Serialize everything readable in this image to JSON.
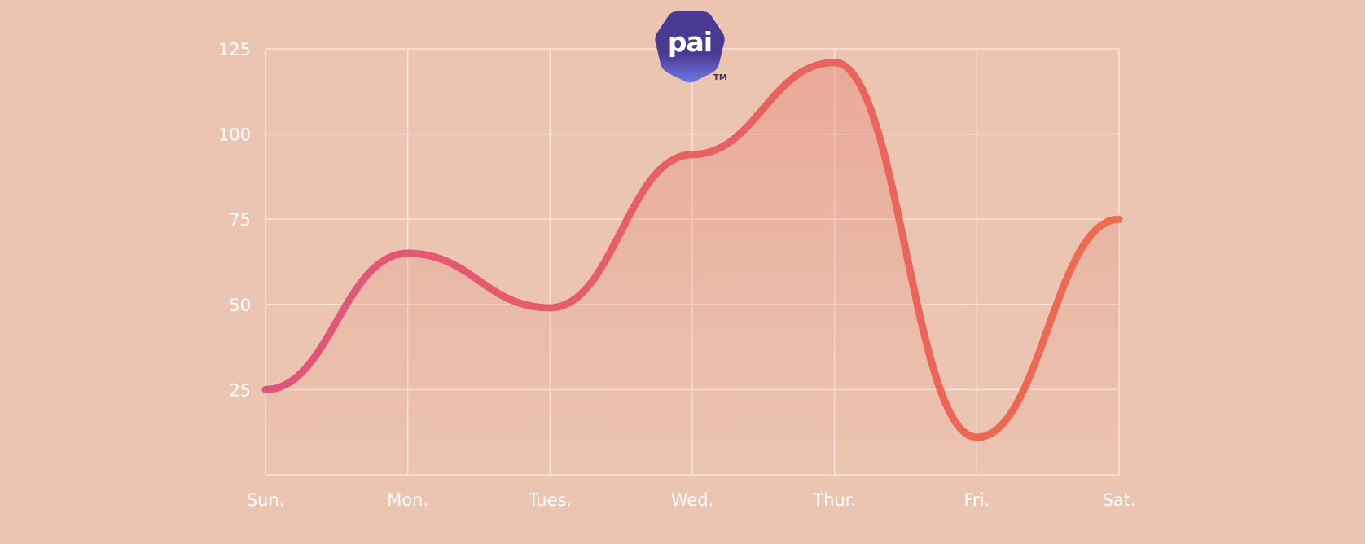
{
  "logo": {
    "text": "pai",
    "trademark": "TM"
  },
  "colors": {
    "background": "#ebc5b2",
    "grid": "#f7e3da",
    "line_start": "#e0557a",
    "line_end": "#ee6b4f",
    "logo_top": "#4b3a94",
    "logo_bottom": "#6f78e8"
  },
  "chart_data": {
    "type": "area",
    "categories": [
      "Sun.",
      "Mon.",
      "Tues.",
      "Wed.",
      "Thur.",
      "Fri.",
      "Sat."
    ],
    "series": [
      {
        "values": [
          25,
          65,
          49,
          94,
          121,
          11,
          75
        ]
      }
    ],
    "yticks": [
      25,
      50,
      75,
      100,
      125
    ],
    "ylim": [
      0,
      125
    ],
    "grid": true,
    "title": "",
    "xlabel": "",
    "ylabel": ""
  }
}
